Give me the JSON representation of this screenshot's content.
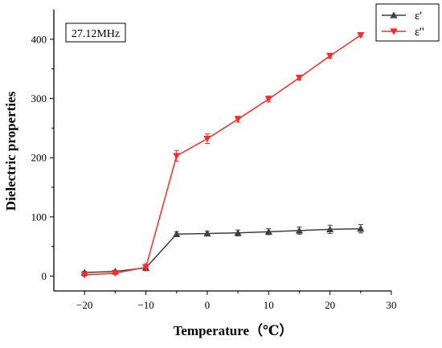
{
  "chart_data": {
    "type": "line",
    "xlabel": "Temperature（℃）",
    "ylabel": "Dielectric properties",
    "annotation": "27.12MHz",
    "xlim": [
      -25,
      30
    ],
    "ylim": [
      -25,
      450
    ],
    "x_ticks": [
      -20,
      -10,
      0,
      10,
      20,
      30
    ],
    "y_ticks": [
      0,
      100,
      200,
      300,
      400
    ],
    "x_tick_labels": [
      "−20",
      "−10",
      "0",
      "10",
      "20",
      "30"
    ],
    "y_tick_labels": [
      "0",
      "100",
      "200",
      "300",
      "400"
    ],
    "x": [
      -20,
      -15,
      -10,
      -5,
      0,
      5,
      10,
      15,
      20,
      25
    ],
    "series": [
      {
        "name": "ε'",
        "color": "#3f3f3f",
        "marker": "triangle-up",
        "values": [
          6,
          8,
          14,
          71,
          72,
          73,
          75,
          77,
          79,
          80
        ],
        "errors": [
          2,
          2,
          3,
          4,
          4,
          5,
          5,
          6,
          7,
          7
        ]
      },
      {
        "name": "ε''",
        "color": "#ff2a2a",
        "marker": "triangle-down",
        "values": [
          2,
          5,
          15,
          203,
          232,
          265,
          299,
          335,
          372,
          407
        ],
        "errors": [
          2,
          2,
          6,
          9,
          8,
          5,
          5,
          4,
          4,
          3
        ]
      }
    ],
    "legend_position": "top-right",
    "grid": false
  }
}
